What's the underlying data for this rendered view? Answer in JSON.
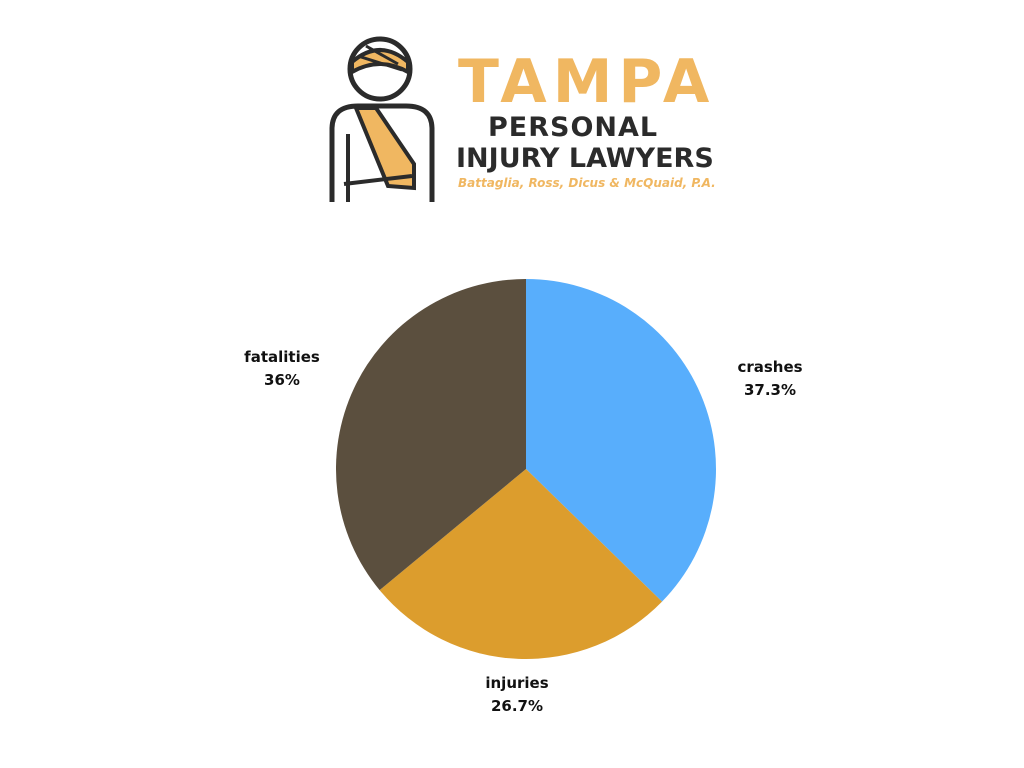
{
  "logo": {
    "line1": "TAMPA",
    "line2": "PERSONAL",
    "line3": "INJURY LAWYERS",
    "firm": "Battaglia, Ross, Dicus & McQuaid, P.A.",
    "colors": {
      "accent": "#F0B761",
      "dark": "#2B2B2B"
    }
  },
  "chart_data": {
    "type": "pie",
    "slices": [
      {
        "label": "crashes",
        "value": 37.3,
        "display": "37.3%",
        "color": "#58AEFC"
      },
      {
        "label": "injuries",
        "value": 26.7,
        "display": "26.7%",
        "color": "#DC9D2D"
      },
      {
        "label": "fatalities",
        "value": 36,
        "display": "36%",
        "color": "#5B4F3E"
      }
    ],
    "start_angle": "12 o'clock",
    "direction": "clockwise",
    "legend": "none"
  }
}
